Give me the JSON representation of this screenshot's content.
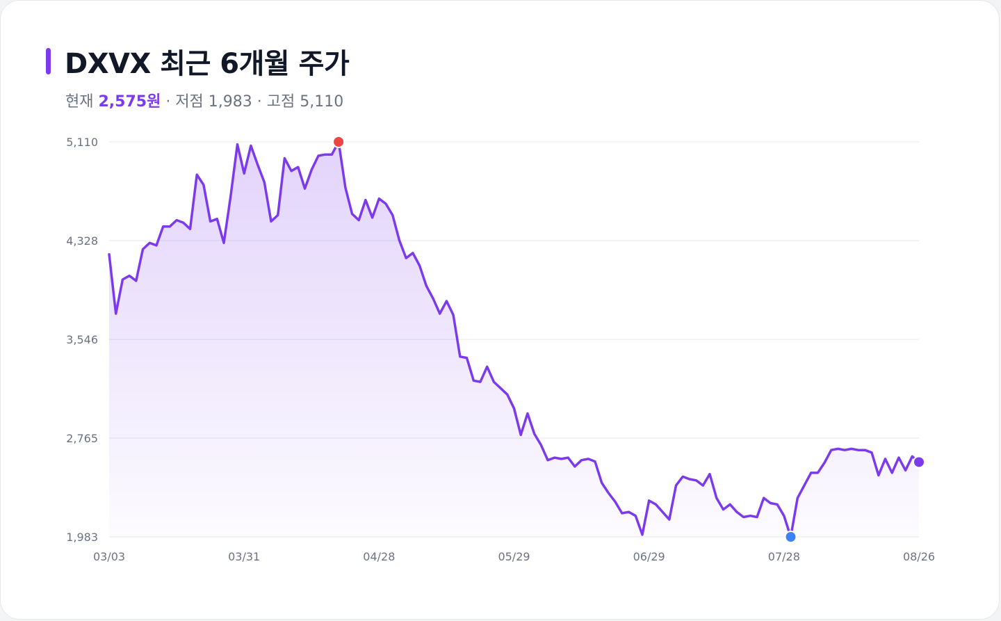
{
  "title": "DXVX 최근 6개월 주가",
  "subtitle": {
    "current_label": "현재",
    "current_value": "2,575원",
    "sep1": "·",
    "low_label": "저점",
    "low_value": "1,983",
    "sep2": "·",
    "high_label": "고점",
    "high_value": "5,110"
  },
  "colors": {
    "accent": "#7c3aed",
    "high_marker": "#ef4444",
    "low_marker": "#3b82f6",
    "grid": "#e5e7eb"
  },
  "chart_data": {
    "type": "area",
    "title": "DXVX 최근 6개월 주가",
    "xlabel": "",
    "ylabel": "",
    "ylim": [
      1983,
      5110
    ],
    "xlim": [
      "03/03",
      "08/26"
    ],
    "y_ticks": [
      1983,
      2765,
      3546,
      4328,
      5110
    ],
    "y_tick_labels": [
      "1,983",
      "2,765",
      "3,546",
      "4,328",
      "5,110"
    ],
    "x_ticks": [
      "03/03",
      "03/31",
      "04/28",
      "05/29",
      "06/29",
      "07/28",
      "08/26"
    ],
    "grid": true,
    "markers": {
      "high": {
        "label": "고점",
        "value": 5110
      },
      "low": {
        "label": "저점",
        "value": 1983
      },
      "last": {
        "label": "현재",
        "value": 2575
      }
    },
    "series": [
      {
        "values": [
          4220,
          3750,
          4020,
          4050,
          4010,
          4260,
          4310,
          4290,
          4440,
          4440,
          4490,
          4470,
          4420,
          4850,
          4770,
          4480,
          4500,
          4310,
          4680,
          5090,
          4860,
          5080,
          4930,
          4790,
          4480,
          4530,
          4980,
          4880,
          4910,
          4740,
          4890,
          5000,
          5010,
          5010,
          5110,
          4750,
          4540,
          4490,
          4650,
          4510,
          4660,
          4620,
          4530,
          4330,
          4190,
          4230,
          4130,
          3970,
          3870,
          3750,
          3850,
          3740,
          3410,
          3400,
          3220,
          3210,
          3330,
          3210,
          3160,
          3110,
          3000,
          2790,
          2960,
          2800,
          2710,
          2590,
          2610,
          2600,
          2610,
          2540,
          2590,
          2600,
          2580,
          2410,
          2330,
          2260,
          2170,
          2180,
          2150,
          2000,
          2270,
          2240,
          2180,
          2120,
          2390,
          2460,
          2440,
          2430,
          2390,
          2480,
          2290,
          2200,
          2240,
          2180,
          2140,
          2150,
          2140,
          2290,
          2250,
          2240,
          2150,
          1983,
          2290,
          2390,
          2490,
          2490,
          2570,
          2670,
          2680,
          2670,
          2680,
          2670,
          2670,
          2650,
          2470,
          2600,
          2490,
          2610,
          2510,
          2620,
          2575
        ]
      }
    ]
  }
}
